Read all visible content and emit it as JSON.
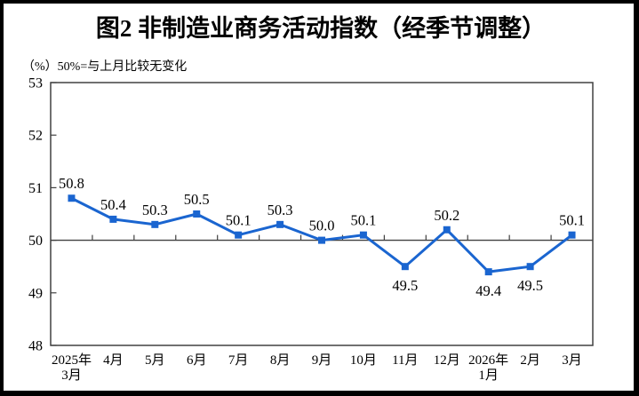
{
  "chart_data": {
    "type": "line",
    "title": "图2 非制造业商务活动指数（经季节调整）",
    "note": "（%）50%=与上月比较无变化",
    "categories": [
      [
        "2025年",
        "3月"
      ],
      [
        "4月"
      ],
      [
        "5月"
      ],
      [
        "6月"
      ],
      [
        "7月"
      ],
      [
        "8月"
      ],
      [
        "9月"
      ],
      [
        "10月"
      ],
      [
        "11月"
      ],
      [
        "12月"
      ],
      [
        "2026年",
        "1月"
      ],
      [
        "2月"
      ],
      [
        "3月"
      ]
    ],
    "values": [
      50.8,
      50.4,
      50.3,
      50.5,
      50.1,
      50.3,
      50.0,
      50.1,
      49.5,
      50.2,
      49.4,
      49.5,
      50.1
    ],
    "data_labels": [
      "50.8",
      "50.4",
      "50.3",
      "50.5",
      "50.1",
      "50.3",
      "50.0",
      "50.1",
      "49.5",
      "50.2",
      "49.4",
      "49.5",
      "50.1"
    ],
    "label_side": [
      "above",
      "above",
      "above",
      "above",
      "above",
      "above",
      "above",
      "above",
      "below",
      "above",
      "below",
      "below",
      "above"
    ],
    "ylim": [
      48,
      53
    ],
    "y_ticks": [
      53,
      52,
      51,
      50,
      49,
      48
    ],
    "reference_line_y": 50,
    "grid": "off",
    "legend": "none",
    "marker": "square",
    "colors": {
      "line": "#1A65D0",
      "axis": "#404040",
      "text": "#000000",
      "background": "#FFFFFF",
      "frame": "#000000"
    }
  }
}
